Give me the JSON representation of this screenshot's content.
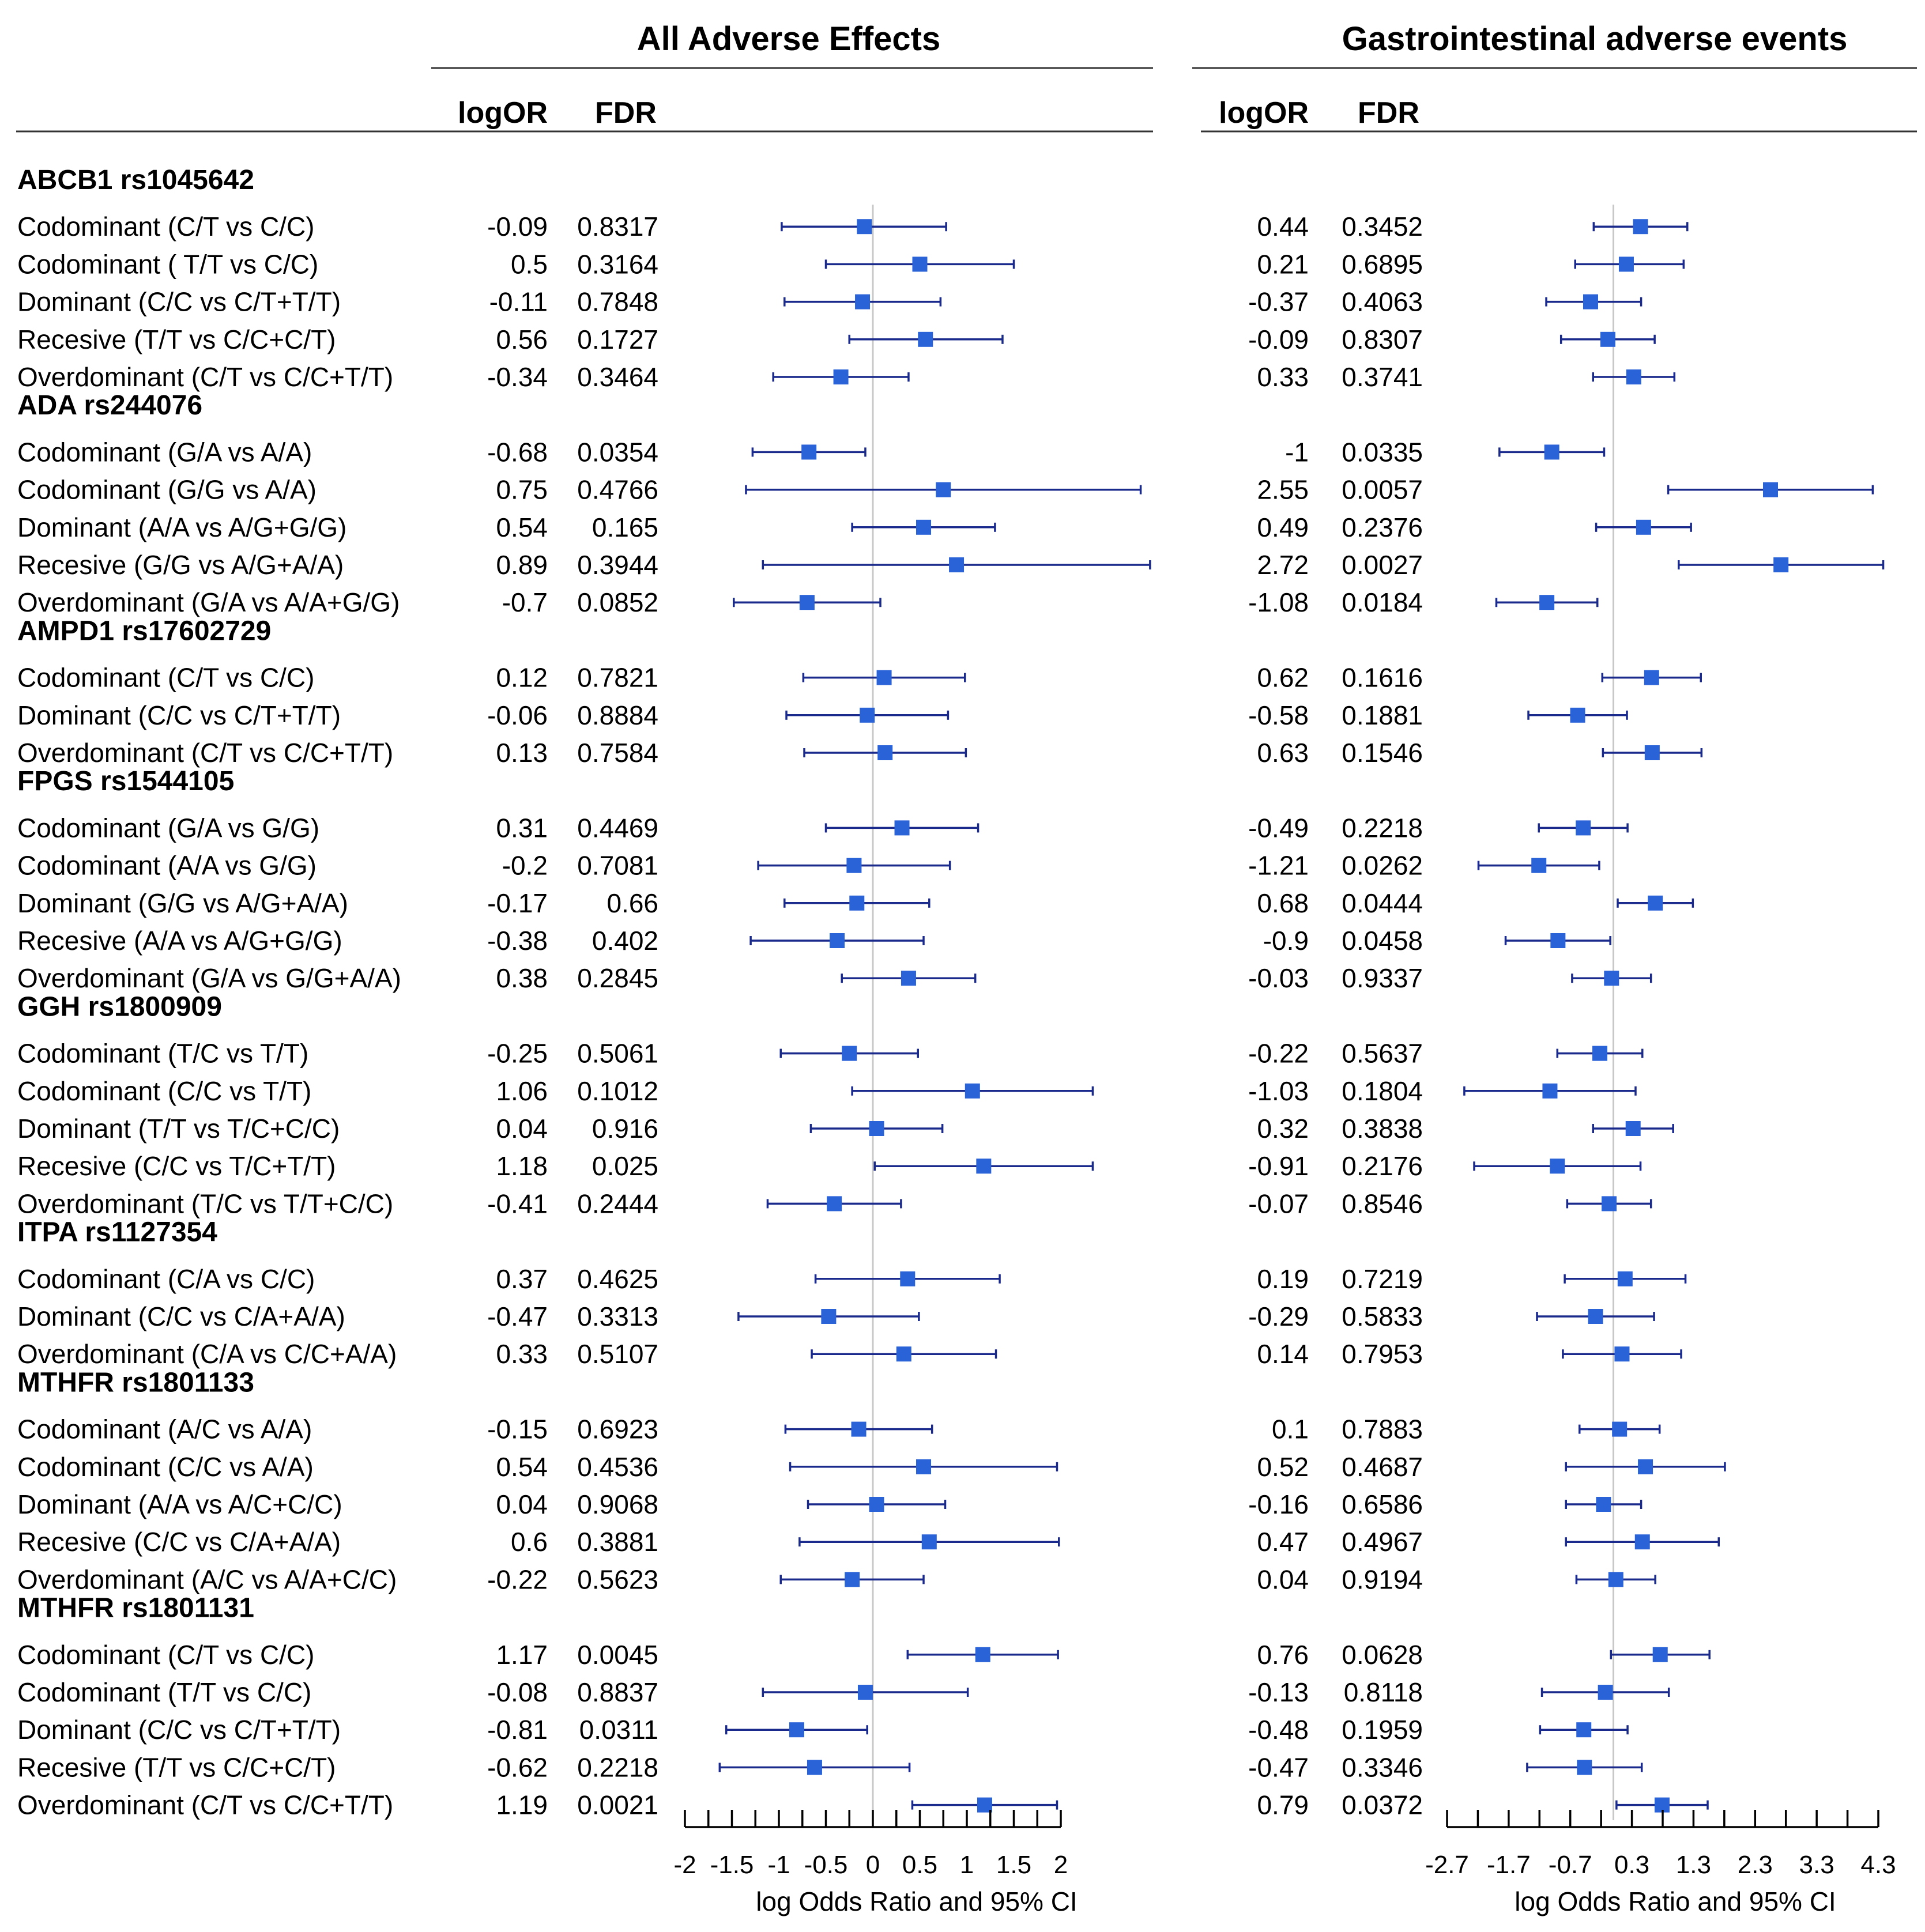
{
  "panels": [
    {
      "title": "All Adverse Effects",
      "col_logor": "logOR",
      "col_fdr": "FDR",
      "xlabel": "log Odds Ratio and 95% CI",
      "xlim": [
        -2,
        2
      ],
      "ticks": [
        "-2",
        "-1.5",
        "-1",
        "-0.5",
        "0",
        "0.5",
        "1",
        "1.5",
        "2"
      ]
    },
    {
      "title": "Gastrointestinal adverse events",
      "col_logor": "logOR",
      "col_fdr": "FDR",
      "xlabel": "log Odds Ratio and 95% CI",
      "xlim": [
        -2.7,
        4.3
      ],
      "ticks": [
        "-2.7",
        "-1.7",
        "-0.7",
        "0.3",
        "1.3",
        "2.3",
        "3.3",
        "4.3"
      ]
    }
  ],
  "colors": {
    "marker": "#2a62d8",
    "whisker": "#1a2a8c",
    "reference": "#c8c8c8"
  },
  "chart_data": [
    {
      "type": "forest",
      "title": "All Adverse Effects",
      "xlabel": "log Odds Ratio and 95% CI",
      "xlim": [
        -2,
        2
      ],
      "groups": [
        {
          "gene": "ABCB1 rs1045642",
          "rows": [
            {
              "label": "Codominant (C/T vs C/C)",
              "logOR": -0.09,
              "lo": -0.97,
              "hi": 0.78,
              "fdr": "0.8317",
              "logOR_text": "-0.09"
            },
            {
              "label": "Codominant ( T/T vs C/C)",
              "logOR": 0.5,
              "lo": -0.5,
              "hi": 1.5,
              "fdr": "0.3164",
              "logOR_text": "0.5"
            },
            {
              "label": "Dominant (C/C vs C/T+T/T)",
              "logOR": -0.11,
              "lo": -0.94,
              "hi": 0.72,
              "fdr": "0.7848",
              "logOR_text": "-0.11"
            },
            {
              "label": "Recesive (T/T vs C/C+C/T)",
              "logOR": 0.56,
              "lo": -0.25,
              "hi": 1.38,
              "fdr": "0.1727",
              "logOR_text": "0.56"
            },
            {
              "label": "Overdominant (C/T vs C/C+T/T)",
              "logOR": -0.34,
              "lo": -1.06,
              "hi": 0.38,
              "fdr": "0.3464",
              "logOR_text": "-0.34"
            }
          ]
        },
        {
          "gene": "ADA rs244076",
          "rows": [
            {
              "label": "Codominant (G/A vs A/A)",
              "logOR": -0.68,
              "lo": -1.28,
              "hi": -0.08,
              "fdr": "0.0354",
              "logOR_text": "-0.68"
            },
            {
              "label": "Codominant (G/G vs A/A)",
              "logOR": 0.75,
              "lo": -1.35,
              "hi": 2.85,
              "fdr": "0.4766",
              "logOR_text": "0.75"
            },
            {
              "label": "Dominant (A/A vs A/G+G/G)",
              "logOR": 0.54,
              "lo": -0.22,
              "hi": 1.3,
              "fdr": "0.165",
              "logOR_text": "0.54"
            },
            {
              "label": "Recesive (G/G vs A/G+A/A)",
              "logOR": 0.89,
              "lo": -1.17,
              "hi": 2.95,
              "fdr": "0.3944",
              "logOR_text": "0.89"
            },
            {
              "label": "Overdominant (G/A vs A/A+G/G)",
              "logOR": -0.7,
              "lo": -1.48,
              "hi": 0.08,
              "fdr": "0.0852",
              "logOR_text": "-0.7"
            }
          ]
        },
        {
          "gene": "AMPD1 rs17602729",
          "rows": [
            {
              "label": "Codominant (C/T vs C/C)",
              "logOR": 0.12,
              "lo": -0.74,
              "hi": 0.98,
              "fdr": "0.7821",
              "logOR_text": "0.12"
            },
            {
              "label": "Dominant (C/C vs C/T+T/T)",
              "logOR": -0.06,
              "lo": -0.92,
              "hi": 0.8,
              "fdr": "0.8884",
              "logOR_text": "-0.06"
            },
            {
              "label": "Overdominant (C/T vs C/C+T/T)",
              "logOR": 0.13,
              "lo": -0.73,
              "hi": 0.99,
              "fdr": "0.7584",
              "logOR_text": "0.13"
            }
          ]
        },
        {
          "gene": "FPGS rs1544105",
          "rows": [
            {
              "label": "Codominant (G/A vs G/G)",
              "logOR": 0.31,
              "lo": -0.5,
              "hi": 1.12,
              "fdr": "0.4469",
              "logOR_text": "0.31"
            },
            {
              "label": "Codominant (A/A vs G/G)",
              "logOR": -0.2,
              "lo": -1.22,
              "hi": 0.82,
              "fdr": "0.7081",
              "logOR_text": "-0.2"
            },
            {
              "label": "Dominant (G/G vs A/G+A/A)",
              "logOR": -0.17,
              "lo": -0.94,
              "hi": 0.6,
              "fdr": "0.66",
              "logOR_text": "-0.17"
            },
            {
              "label": "Recesive (A/A vs A/G+G/G)",
              "logOR": -0.38,
              "lo": -1.3,
              "hi": 0.54,
              "fdr": "0.402",
              "logOR_text": "-0.38"
            },
            {
              "label": "Overdominant (G/A vs G/G+A/A)",
              "logOR": 0.38,
              "lo": -0.33,
              "hi": 1.09,
              "fdr": "0.2845",
              "logOR_text": "0.38"
            }
          ]
        },
        {
          "gene": "GGH rs1800909",
          "rows": [
            {
              "label": "Codominant (T/C vs T/T)",
              "logOR": -0.25,
              "lo": -0.98,
              "hi": 0.48,
              "fdr": "0.5061",
              "logOR_text": "-0.25"
            },
            {
              "label": "Codominant (C/C vs T/T)",
              "logOR": 1.06,
              "lo": -0.22,
              "hi": 2.34,
              "fdr": "0.1012",
              "logOR_text": "1.06"
            },
            {
              "label": "Dominant (T/T vs T/C+C/C)",
              "logOR": 0.04,
              "lo": -0.66,
              "hi": 0.74,
              "fdr": "0.916",
              "logOR_text": "0.04"
            },
            {
              "label": "Recesive (C/C vs T/C+T/T)",
              "logOR": 1.18,
              "lo": 0.02,
              "hi": 2.34,
              "fdr": "0.025",
              "logOR_text": "1.18"
            },
            {
              "label": "Overdominant (T/C vs T/T+C/C)",
              "logOR": -0.41,
              "lo": -1.12,
              "hi": 0.3,
              "fdr": "0.2444",
              "logOR_text": "-0.41"
            }
          ]
        },
        {
          "gene": "ITPA rs1127354",
          "rows": [
            {
              "label": "Codominant (C/A vs C/C)",
              "logOR": 0.37,
              "lo": -0.61,
              "hi": 1.35,
              "fdr": "0.4625",
              "logOR_text": "0.37"
            },
            {
              "label": "Dominant (C/C vs C/A+A/A)",
              "logOR": -0.47,
              "lo": -1.43,
              "hi": 0.49,
              "fdr": "0.3313",
              "logOR_text": "-0.47"
            },
            {
              "label": "Overdominant (C/A vs C/C+A/A)",
              "logOR": 0.33,
              "lo": -0.65,
              "hi": 1.31,
              "fdr": "0.5107",
              "logOR_text": "0.33"
            }
          ]
        },
        {
          "gene": "MTHFR rs1801133",
          "rows": [
            {
              "label": "Codominant (A/C vs A/A)",
              "logOR": -0.15,
              "lo": -0.93,
              "hi": 0.63,
              "fdr": "0.6923",
              "logOR_text": "-0.15"
            },
            {
              "label": "Codominant (C/C vs A/A)",
              "logOR": 0.54,
              "lo": -0.88,
              "hi": 1.96,
              "fdr": "0.4536",
              "logOR_text": "0.54"
            },
            {
              "label": "Dominant (A/A vs A/C+C/C)",
              "logOR": 0.04,
              "lo": -0.69,
              "hi": 0.77,
              "fdr": "0.9068",
              "logOR_text": "0.04"
            },
            {
              "label": "Recesive (C/C vs C/A+A/A)",
              "logOR": 0.6,
              "lo": -0.78,
              "hi": 1.98,
              "fdr": "0.3881",
              "logOR_text": "0.6"
            },
            {
              "label": "Overdominant (A/C vs A/A+C/C)",
              "logOR": -0.22,
              "lo": -0.98,
              "hi": 0.54,
              "fdr": "0.5623",
              "logOR_text": "-0.22"
            }
          ]
        },
        {
          "gene": "MTHFR rs1801131",
          "rows": [
            {
              "label": "Codominant (C/T vs C/C)",
              "logOR": 1.17,
              "lo": 0.37,
              "hi": 1.97,
              "fdr": "0.0045",
              "logOR_text": "1.17"
            },
            {
              "label": "Codominant (T/T vs C/C)",
              "logOR": -0.08,
              "lo": -1.17,
              "hi": 1.01,
              "fdr": "0.8837",
              "logOR_text": "-0.08"
            },
            {
              "label": "Dominant (C/C vs C/T+T/T)",
              "logOR": -0.81,
              "lo": -1.56,
              "hi": -0.06,
              "fdr": "0.0311",
              "logOR_text": "-0.81"
            },
            {
              "label": "Recesive (T/T vs C/C+C/T)",
              "logOR": -0.62,
              "lo": -1.63,
              "hi": 0.39,
              "fdr": "0.2218",
              "logOR_text": "-0.62"
            },
            {
              "label": "Overdominant (C/T vs C/C+T/T)",
              "logOR": 1.19,
              "lo": 0.42,
              "hi": 1.96,
              "fdr": "0.0021",
              "logOR_text": "1.19"
            }
          ]
        }
      ]
    },
    {
      "type": "forest",
      "title": "Gastrointestinal adverse events",
      "xlabel": "log Odds Ratio and 95% CI",
      "xlim": [
        -2.7,
        4.3
      ],
      "groups": [
        {
          "gene": "ABCB1 rs1045642",
          "rows": [
            {
              "logOR": 0.44,
              "lo": -0.32,
              "hi": 1.2,
              "fdr": "0.3452",
              "logOR_text": "0.44"
            },
            {
              "logOR": 0.21,
              "lo": -0.62,
              "hi": 1.14,
              "fdr": "0.6895",
              "logOR_text": "0.21"
            },
            {
              "logOR": -0.37,
              "lo": -1.09,
              "hi": 0.45,
              "fdr": "0.4063",
              "logOR_text": "-0.37"
            },
            {
              "logOR": -0.09,
              "lo": -0.85,
              "hi": 0.67,
              "fdr": "0.8307",
              "logOR_text": "-0.09"
            },
            {
              "logOR": 0.33,
              "lo": -0.33,
              "hi": 0.99,
              "fdr": "0.3741",
              "logOR_text": "0.33"
            }
          ]
        },
        {
          "gene": "ADA rs244076",
          "rows": [
            {
              "logOR": -1,
              "lo": -1.85,
              "hi": -0.15,
              "fdr": "0.0335",
              "logOR_text": "-1"
            },
            {
              "logOR": 2.55,
              "lo": 0.89,
              "hi": 4.21,
              "fdr": "0.0057",
              "logOR_text": "2.55"
            },
            {
              "logOR": 0.49,
              "lo": -0.28,
              "hi": 1.26,
              "fdr": "0.2376",
              "logOR_text": "0.49"
            },
            {
              "logOR": 2.72,
              "lo": 1.06,
              "hi": 4.38,
              "fdr": "0.0027",
              "logOR_text": "2.72"
            },
            {
              "logOR": -1.08,
              "lo": -1.9,
              "hi": -0.26,
              "fdr": "0.0184",
              "logOR_text": "-1.08"
            }
          ]
        },
        {
          "gene": "AMPD1 rs17602729",
          "rows": [
            {
              "logOR": 0.62,
              "lo": -0.18,
              "hi": 1.42,
              "fdr": "0.1616",
              "logOR_text": "0.62"
            },
            {
              "logOR": -0.58,
              "lo": -1.38,
              "hi": 0.22,
              "fdr": "0.1881",
              "logOR_text": "-0.58"
            },
            {
              "logOR": 0.63,
              "lo": -0.17,
              "hi": 1.43,
              "fdr": "0.1546",
              "logOR_text": "0.63"
            }
          ]
        },
        {
          "gene": "FPGS rs1544105",
          "rows": [
            {
              "logOR": -0.49,
              "lo": -1.21,
              "hi": 0.23,
              "fdr": "0.2218",
              "logOR_text": "-0.49"
            },
            {
              "logOR": -1.21,
              "lo": -2.19,
              "hi": -0.23,
              "fdr": "0.0262",
              "logOR_text": "-1.21"
            },
            {
              "logOR": 0.68,
              "lo": 0.07,
              "hi": 1.29,
              "fdr": "0.0444",
              "logOR_text": "0.68"
            },
            {
              "logOR": -0.9,
              "lo": -1.75,
              "hi": -0.05,
              "fdr": "0.0458",
              "logOR_text": "-0.9"
            },
            {
              "logOR": -0.03,
              "lo": -0.67,
              "hi": 0.61,
              "fdr": "0.9337",
              "logOR_text": "-0.03"
            }
          ]
        },
        {
          "gene": "GGH rs1800909",
          "rows": [
            {
              "logOR": -0.22,
              "lo": -0.91,
              "hi": 0.47,
              "fdr": "0.5637",
              "logOR_text": "-0.22"
            },
            {
              "logOR": -1.03,
              "lo": -2.42,
              "hi": 0.36,
              "fdr": "0.1804",
              "logOR_text": "-1.03"
            },
            {
              "logOR": 0.32,
              "lo": -0.33,
              "hi": 0.97,
              "fdr": "0.3838",
              "logOR_text": "0.32"
            },
            {
              "logOR": -0.91,
              "lo": -2.26,
              "hi": 0.44,
              "fdr": "0.2176",
              "logOR_text": "-0.91"
            },
            {
              "logOR": -0.07,
              "lo": -0.75,
              "hi": 0.61,
              "fdr": "0.8546",
              "logOR_text": "-0.07"
            }
          ]
        },
        {
          "gene": "ITPA rs1127354",
          "rows": [
            {
              "logOR": 0.19,
              "lo": -0.79,
              "hi": 1.17,
              "fdr": "0.7219",
              "logOR_text": "0.19"
            },
            {
              "logOR": -0.29,
              "lo": -1.24,
              "hi": 0.66,
              "fdr": "0.5833",
              "logOR_text": "-0.29"
            },
            {
              "logOR": 0.14,
              "lo": -0.82,
              "hi": 1.1,
              "fdr": "0.7953",
              "logOR_text": "0.14"
            }
          ]
        },
        {
          "gene": "MTHFR rs1801133",
          "rows": [
            {
              "logOR": 0.1,
              "lo": -0.55,
              "hi": 0.75,
              "fdr": "0.7883",
              "logOR_text": "0.1"
            },
            {
              "logOR": 0.52,
              "lo": -0.77,
              "hi": 1.81,
              "fdr": "0.4687",
              "logOR_text": "0.52"
            },
            {
              "logOR": -0.16,
              "lo": -0.77,
              "hi": 0.45,
              "fdr": "0.6586",
              "logOR_text": "-0.16"
            },
            {
              "logOR": 0.47,
              "lo": -0.77,
              "hi": 1.71,
              "fdr": "0.4967",
              "logOR_text": "0.47"
            },
            {
              "logOR": 0.04,
              "lo": -0.6,
              "hi": 0.68,
              "fdr": "0.9194",
              "logOR_text": "0.04"
            }
          ]
        },
        {
          "gene": "MTHFR rs1801131",
          "rows": [
            {
              "logOR": 0.76,
              "lo": -0.04,
              "hi": 1.56,
              "fdr": "0.0628",
              "logOR_text": "0.76"
            },
            {
              "logOR": -0.13,
              "lo": -1.16,
              "hi": 0.9,
              "fdr": "0.8118",
              "logOR_text": "-0.13"
            },
            {
              "logOR": -0.48,
              "lo": -1.19,
              "hi": 0.23,
              "fdr": "0.1959",
              "logOR_text": "-0.48"
            },
            {
              "logOR": -0.47,
              "lo": -1.4,
              "hi": 0.46,
              "fdr": "0.3346",
              "logOR_text": "-0.47"
            },
            {
              "logOR": 0.79,
              "lo": 0.05,
              "hi": 1.53,
              "fdr": "0.0372",
              "logOR_text": "0.79"
            }
          ]
        }
      ]
    }
  ]
}
